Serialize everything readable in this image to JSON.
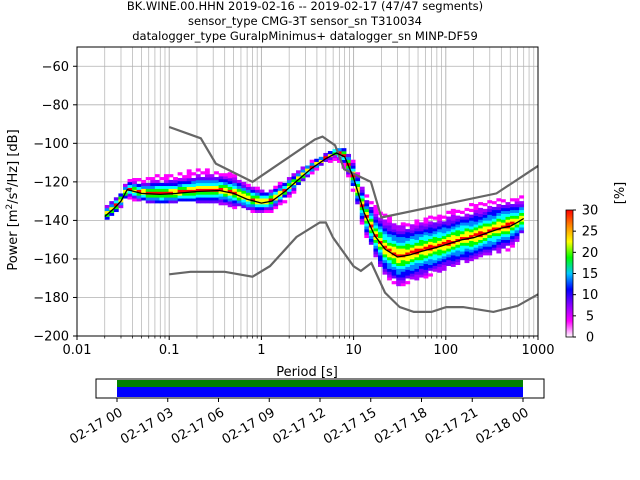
{
  "title_lines": [
    "BK.WINE.00.HHN   2019-02-16 -- 2019-02-17  (47/47 segments)",
    "sensor_type CMG-3T sensor_sn T310034",
    "datalogger_type GuralpMinimus+ datalogger_sn MINP-DF59"
  ],
  "chart_data": {
    "type": "heatmap",
    "xlabel": "Period [s]",
    "ylabel": "Power [m²/s⁴/Hz] [dB]",
    "ylabel_parts": {
      "main": "Power [m",
      "sup1": "2",
      "mid": "/s",
      "sup2": "4",
      "end": "/Hz] [dB]"
    },
    "x_scale": "log",
    "xlim": [
      0.01,
      1000
    ],
    "ylim": [
      -200,
      -50
    ],
    "x_ticks": [
      0.01,
      0.1,
      1,
      10,
      100,
      1000
    ],
    "x_tick_labels": [
      "0.01",
      "0.1",
      "1",
      "10",
      "100",
      "1000"
    ],
    "y_ticks": [
      -200,
      -180,
      -160,
      -140,
      -120,
      -100,
      -80,
      -60
    ],
    "y_tick_labels": [
      "−200",
      "−180",
      "−160",
      "−140",
      "−120",
      "−100",
      "−80",
      "−60"
    ],
    "grid": true,
    "colorbar": {
      "label": "[%]",
      "range": [
        0,
        30
      ],
      "ticks": [
        0,
        5,
        10,
        15,
        20,
        25,
        30
      ],
      "tick_labels": [
        "0",
        "5",
        "10",
        "15",
        "20",
        "25",
        "30"
      ],
      "colormap": [
        "#ffffff",
        "#ff00ff",
        "#8800ff",
        "#0000ff",
        "#00c8ff",
        "#00ff00",
        "#ffff00",
        "#ff8800",
        "#ff0000"
      ]
    },
    "noise_model_high": {
      "name": "NHNM",
      "x": [
        0.1,
        0.22,
        0.32,
        0.8,
        3.8,
        4.6,
        6.3,
        7.9,
        15.4,
        20,
        354.8,
        10000
      ],
      "y": [
        -91.5,
        -97.4,
        -110.5,
        -120,
        -98,
        -96.5,
        -101,
        -113.5,
        -120,
        -138.5,
        -126,
        -80
      ]
    },
    "noise_model_low": {
      "name": "NLNM",
      "x": [
        0.1,
        0.17,
        0.4,
        0.8,
        1.24,
        2.4,
        4.3,
        5,
        6,
        10,
        12,
        15.6,
        21.9,
        31.6,
        45,
        70,
        101,
        154,
        328,
        600,
        10000
      ],
      "y": [
        -168,
        -166.7,
        -166.7,
        -169.2,
        -163.7,
        -148.6,
        -141.1,
        -141.1,
        -149,
        -163.8,
        -166.2,
        -162.1,
        -177.5,
        -185,
        -187.5,
        -187.5,
        -185,
        -185,
        -187.5,
        -184.4,
        -151
      ]
    },
    "mode_curve": {
      "x": [
        0.02,
        0.025,
        0.03,
        0.035,
        0.05,
        0.08,
        0.12,
        0.2,
        0.35,
        0.5,
        0.7,
        1.0,
        1.3,
        1.8,
        2.5,
        3.5,
        5,
        6.5,
        8,
        10,
        13,
        17,
        22,
        30,
        40,
        55,
        80,
        110,
        150,
        200,
        300,
        400,
        500,
        600,
        700
      ],
      "y": [
        -138,
        -134,
        -130,
        -124,
        -126,
        -126.5,
        -126,
        -125,
        -124.5,
        -126,
        -129,
        -131,
        -130,
        -125,
        -119,
        -113,
        -108,
        -105,
        -107,
        -118,
        -136,
        -148,
        -155,
        -159,
        -158,
        -156,
        -154,
        -152,
        -150,
        -149,
        -146,
        -144,
        -143,
        -141,
        -139
      ]
    },
    "spread_band": {
      "x": [
        0.02,
        0.025,
        0.03,
        0.035,
        0.05,
        0.08,
        0.12,
        0.2,
        0.35,
        0.5,
        0.7,
        1.0,
        1.3,
        1.8,
        2.5,
        3.5,
        5,
        6.5,
        8,
        10,
        13,
        17,
        22,
        30,
        40,
        55,
        80,
        110,
        150,
        200,
        300,
        400,
        500,
        600,
        700
      ],
      "upper": [
        -133,
        -129,
        -126,
        -120,
        -119,
        -117,
        -116,
        -114,
        -115,
        -117,
        -121,
        -124,
        -124,
        -120,
        -115,
        -110,
        -106,
        -103,
        -103,
        -110,
        -125,
        -133,
        -138,
        -141,
        -141,
        -140,
        -138,
        -136,
        -134,
        -132,
        -130,
        -129,
        -129,
        -129,
        -128
      ],
      "lower": [
        -141,
        -138,
        -134,
        -128,
        -130,
        -131,
        -130,
        -130,
        -131,
        -133,
        -135,
        -136,
        -135,
        -130,
        -123,
        -116,
        -110,
        -108,
        -113,
        -125,
        -145,
        -158,
        -168,
        -174,
        -172,
        -170,
        -167,
        -164,
        -162,
        -160,
        -157,
        -156,
        -155,
        -150,
        -146
      ]
    }
  },
  "timeline": {
    "tick_labels": [
      "02-17 00",
      "02-17 03",
      "02-17 06",
      "02-17 09",
      "02-17 12",
      "02-17 15",
      "02-17 18",
      "02-17 21",
      "02-18 00"
    ],
    "coverage_color": "#0000ff",
    "gap_color": "#008000"
  }
}
